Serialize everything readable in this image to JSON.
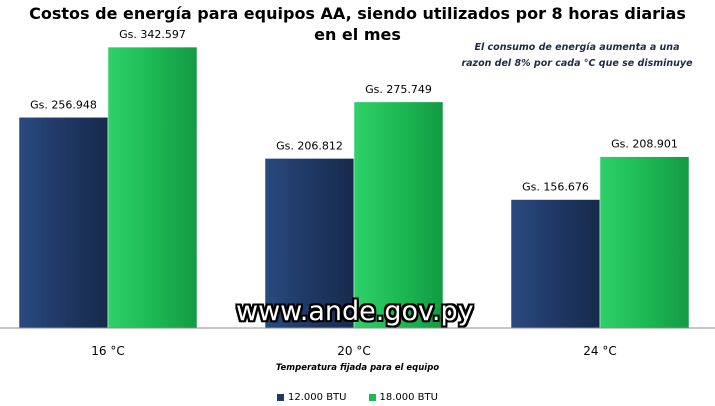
{
  "chart_data": {
    "type": "bar",
    "title_lines": [
      "Costos de energía para equipos AA, siendo utilizados por 8 horas diarias",
      "en el mes"
    ],
    "annotation_lines": [
      "El consumo de energía aumenta a una",
      "razon del 8% por cada °C que se disminuye"
    ],
    "categories": [
      "16 °C",
      "20 °C",
      "24 °C"
    ],
    "xlabel": "Temperatura fijada  para  el equipo",
    "ylabel": "",
    "ylim": [
      0,
      400000
    ],
    "grid": false,
    "legend_position": "bottom",
    "series": [
      {
        "name": "12.000 BTU",
        "color": "#1f3864",
        "values": [
          256948,
          206812,
          156676
        ],
        "labels": [
          "Gs. 256.948",
          "Gs. 206.812",
          "Gs. 156.676"
        ]
      },
      {
        "name": "18.000 BTU",
        "color": "#1db954",
        "values": [
          342597,
          275749,
          208901
        ],
        "labels": [
          "Gs. 342.597",
          "Gs. 275.749",
          "Gs. 208.901"
        ]
      }
    ]
  },
  "watermark": "www.ande.gov.py"
}
